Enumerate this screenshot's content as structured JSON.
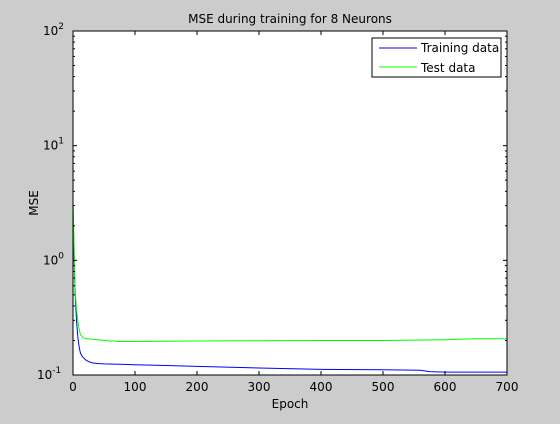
{
  "chart_data": {
    "type": "line",
    "title": "MSE during training for 8 Neurons",
    "xlabel": "Epoch",
    "ylabel": "MSE",
    "xlim": [
      0,
      700
    ],
    "ylim": [
      0.1,
      100
    ],
    "yscale": "log",
    "xticks": [
      0,
      100,
      200,
      300,
      400,
      500,
      600,
      700
    ],
    "yticks": [
      {
        "value": 0.1,
        "base": "10",
        "exp": "-1"
      },
      {
        "value": 1,
        "base": "10",
        "exp": "0"
      },
      {
        "value": 10,
        "base": "10",
        "exp": "1"
      },
      {
        "value": 100,
        "base": "10",
        "exp": "2"
      }
    ],
    "legend": {
      "placement": "top-right"
    },
    "grid": false,
    "series": [
      {
        "name": "Training data",
        "color": "#0000ff",
        "x": [
          0,
          1,
          2,
          3,
          4,
          5,
          6,
          8,
          10,
          12,
          15,
          20,
          25,
          30,
          40,
          50,
          75,
          100,
          150,
          200,
          300,
          400,
          500,
          560,
          575,
          600,
          650,
          700
        ],
        "y": [
          3.0,
          1.6,
          1.0,
          0.62,
          0.45,
          0.35,
          0.28,
          0.21,
          0.175,
          0.155,
          0.145,
          0.136,
          0.131,
          0.128,
          0.126,
          0.125,
          0.124,
          0.123,
          0.121,
          0.119,
          0.115,
          0.112,
          0.111,
          0.11,
          0.107,
          0.106,
          0.106,
          0.106
        ]
      },
      {
        "name": "Test data",
        "color": "#00ff00",
        "x": [
          0,
          1,
          2,
          3,
          4,
          5,
          6,
          8,
          10,
          12,
          15,
          20,
          25,
          30,
          40,
          50,
          75,
          100,
          150,
          200,
          300,
          400,
          500,
          600,
          650,
          700
        ],
        "y": [
          3.2,
          2.0,
          1.2,
          0.65,
          0.5,
          0.42,
          0.36,
          0.29,
          0.25,
          0.225,
          0.215,
          0.208,
          0.206,
          0.205,
          0.203,
          0.2,
          0.196,
          0.196,
          0.197,
          0.198,
          0.199,
          0.2,
          0.2,
          0.203,
          0.207,
          0.207
        ]
      }
    ]
  }
}
